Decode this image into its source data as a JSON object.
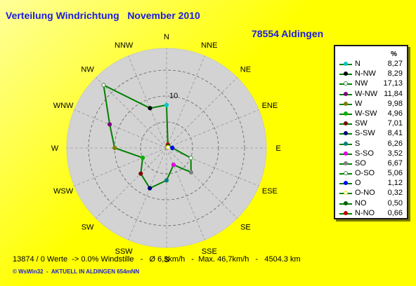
{
  "title": "Verteilung Windrichtung   November 2010",
  "station": "78554 Aldingen",
  "footer": "13874 / 0 Werte  -> 0.0% Windstille   -   Ø 6,3km/h   -  Max. 46,7km/h   -   4504.3 km",
  "credit": "© WsWin32  -  AKTUELL IN ALDINGEN 654mNN",
  "legend_header": "%",
  "colors": {
    "line": "#008000",
    "disc": "#d3d3d3",
    "title": "#1b1be0"
  },
  "chart_data": {
    "type": "radar",
    "rmax": 20,
    "ring_label": "10",
    "directions": [
      "N",
      "NNE",
      "NE",
      "ENE",
      "E",
      "ESE",
      "SE",
      "SSE",
      "S",
      "SSW",
      "SW",
      "WSW",
      "W",
      "WNW",
      "NW",
      "NNW"
    ],
    "series": [
      {
        "legend": "N",
        "value": 8.27,
        "color": "#00c8c8",
        "fill": true,
        "label": "8,27"
      },
      {
        "legend": "N-NW",
        "value": 8.29,
        "color": "#000000",
        "fill": true,
        "label": "8,29"
      },
      {
        "legend": "NW",
        "value": 17.13,
        "color": "#4a8a4a",
        "fill": false,
        "label": "17,13"
      },
      {
        "legend": "W-NW",
        "value": 11.84,
        "color": "#800080",
        "fill": true,
        "label": "11,84"
      },
      {
        "legend": "W",
        "value": 9.98,
        "color": "#808000",
        "fill": true,
        "label": "9,98"
      },
      {
        "legend": "W-SW",
        "value": 4.96,
        "color": "#00b000",
        "fill": true,
        "label": "4,96"
      },
      {
        "legend": "SW",
        "value": 7.01,
        "color": "#800000",
        "fill": true,
        "label": "7,01"
      },
      {
        "legend": "S-SW",
        "value": 8.41,
        "color": "#000080",
        "fill": true,
        "label": "8,41"
      },
      {
        "legend": "S",
        "value": 6.26,
        "color": "#008080",
        "fill": true,
        "label": "6,26"
      },
      {
        "legend": "S-SO",
        "value": 3.52,
        "color": "#e000e0",
        "fill": true,
        "label": "3,52"
      },
      {
        "legend": "SO",
        "value": 6.67,
        "color": "#808080",
        "fill": true,
        "label": "6,67"
      },
      {
        "legend": "O-SO",
        "value": 5.06,
        "color": "#4a8a4a",
        "fill": false,
        "label": "5,06"
      },
      {
        "legend": "O",
        "value": 1.12,
        "color": "#0000ff",
        "fill": true,
        "label": "1,12"
      },
      {
        "legend": "O-NO",
        "value": 0.32,
        "color": "#e0e000",
        "fill": false,
        "label": "0,32"
      },
      {
        "legend": "NO",
        "value": 0.5,
        "color": "#006000",
        "fill": true,
        "label": "0,50"
      },
      {
        "legend": "N-NO",
        "value": 0.66,
        "color": "#c00000",
        "fill": true,
        "label": "0,66"
      }
    ],
    "plot_order": [
      "N",
      "N-NO",
      "NO",
      "O-NO",
      "O",
      "O-SO",
      "SO",
      "S-SO",
      "S",
      "S-SW",
      "SW",
      "W-SW",
      "W",
      "W-NW",
      "NW",
      "N-NW"
    ]
  }
}
